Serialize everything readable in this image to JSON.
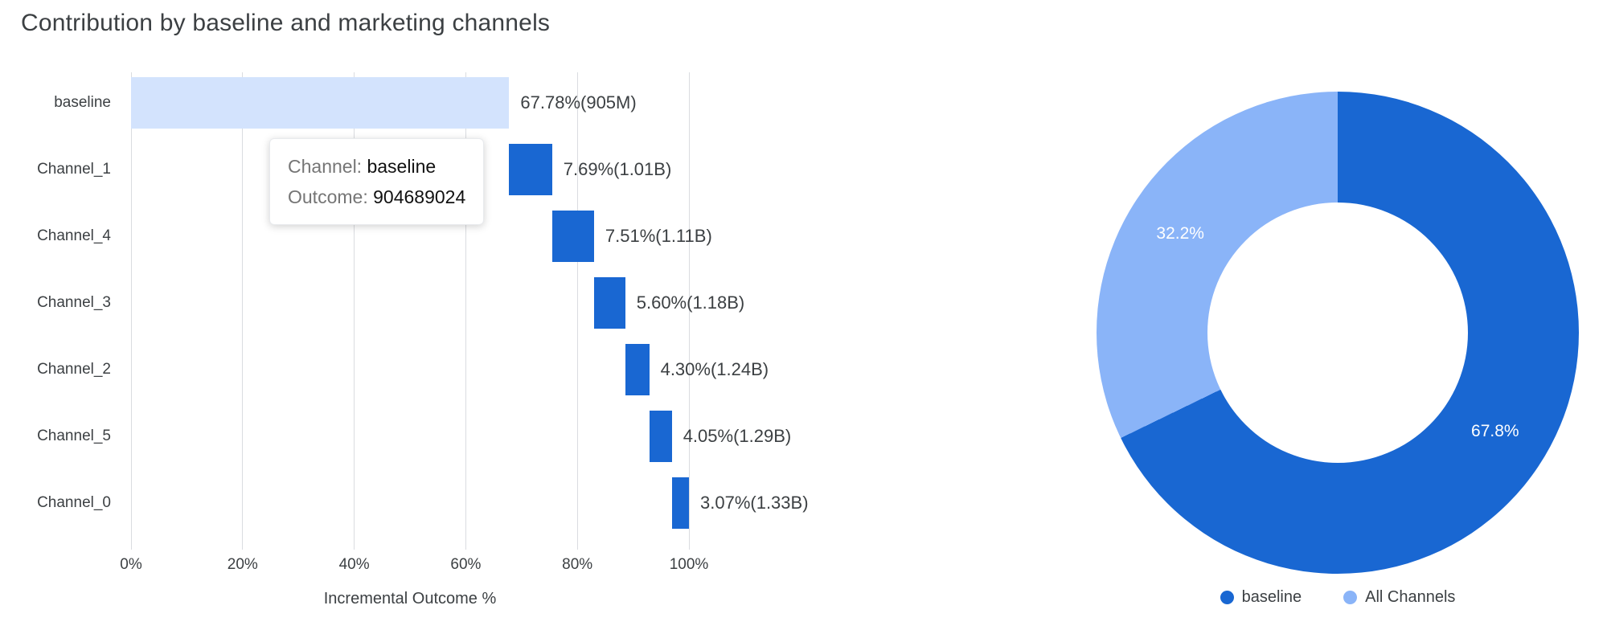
{
  "title": "Contribution by baseline and marketing channels",
  "colors": {
    "baseline_bar": "#D3E3FD",
    "channel_bar": "#1967D2",
    "donut_baseline": "#1967D2",
    "donut_channels": "#8AB4F8",
    "gridline": "#DADCE0"
  },
  "tooltip": {
    "channel_label": "Channel:",
    "channel_value": "baseline",
    "outcome_label": "Outcome:",
    "outcome_value": "904689024"
  },
  "chart_data": [
    {
      "type": "bar",
      "subtype": "horizontal-waterfall",
      "title": "Contribution by baseline and marketing channels",
      "xlabel": "Incremental Outcome %",
      "xlim": [
        0,
        100
      ],
      "xticks": [
        0,
        20,
        40,
        60,
        80,
        100
      ],
      "xtick_labels": [
        "0%",
        "20%",
        "40%",
        "60%",
        "80%",
        "100%"
      ],
      "grid": true,
      "categories": [
        "baseline",
        "Channel_1",
        "Channel_4",
        "Channel_3",
        "Channel_2",
        "Channel_5",
        "Channel_0"
      ],
      "starts": [
        0,
        67.78,
        75.47,
        82.98,
        88.58,
        92.88,
        96.93
      ],
      "values": [
        67.78,
        7.69,
        7.51,
        5.6,
        4.3,
        4.05,
        3.07
      ],
      "labels": [
        "67.78%(905M)",
        "7.69%(1.01B)",
        "7.51%(1.11B)",
        "5.60%(1.18B)",
        "4.30%(1.24B)",
        "4.05%(1.29B)",
        "3.07%(1.33B)"
      ]
    },
    {
      "type": "pie",
      "subtype": "donut",
      "legend_position": "bottom",
      "slices": [
        {
          "label": "baseline",
          "value": 67.8,
          "display": "67.8%",
          "color": "#1967D2"
        },
        {
          "label": "All Channels",
          "value": 32.2,
          "display": "32.2%",
          "color": "#8AB4F8"
        }
      ]
    }
  ]
}
